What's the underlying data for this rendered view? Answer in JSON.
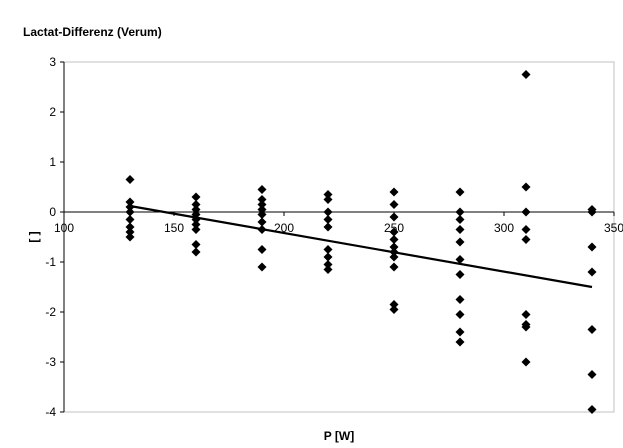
{
  "chart_data": {
    "type": "scatter",
    "title": "Lactat-Differenz (Verum)",
    "xlabel": "P [W]",
    "ylabel": "[ ]",
    "xlim": [
      100,
      350
    ],
    "ylim": [
      -4,
      3
    ],
    "xticks": [
      "100",
      "150",
      "200",
      "250",
      "300",
      "350"
    ],
    "yticks": [
      "3",
      "2",
      "1",
      "0",
      "-1",
      "-2",
      "-3",
      "-4"
    ],
    "marker_color": "#000000",
    "grid": false,
    "legend": "none",
    "series": [
      {
        "points": [
          [
            130,
            0.65
          ],
          [
            130,
            0.2
          ],
          [
            130,
            0.1
          ],
          [
            130,
            0.0
          ],
          [
            130,
            -0.15
          ],
          [
            130,
            -0.3
          ],
          [
            130,
            -0.4
          ],
          [
            130,
            -0.5
          ],
          [
            160,
            0.3
          ],
          [
            160,
            0.15
          ],
          [
            160,
            0.05
          ],
          [
            160,
            -0.05
          ],
          [
            160,
            -0.15
          ],
          [
            160,
            -0.25
          ],
          [
            160,
            -0.35
          ],
          [
            160,
            -0.65
          ],
          [
            160,
            -0.8
          ],
          [
            190,
            0.45
          ],
          [
            190,
            0.25
          ],
          [
            190,
            0.15
          ],
          [
            190,
            0.05
          ],
          [
            190,
            -0.05
          ],
          [
            190,
            -0.2
          ],
          [
            190,
            -0.35
          ],
          [
            190,
            -0.75
          ],
          [
            190,
            -1.1
          ],
          [
            220,
            0.35
          ],
          [
            220,
            0.25
          ],
          [
            220,
            0.0
          ],
          [
            220,
            -0.15
          ],
          [
            220,
            -0.3
          ],
          [
            220,
            -0.75
          ],
          [
            220,
            -0.9
          ],
          [
            220,
            -1.05
          ],
          [
            220,
            -1.15
          ],
          [
            250,
            0.4
          ],
          [
            250,
            0.15
          ],
          [
            250,
            -0.1
          ],
          [
            250,
            -0.4
          ],
          [
            250,
            -0.55
          ],
          [
            250,
            -0.7
          ],
          [
            250,
            -0.8
          ],
          [
            250,
            -0.9
          ],
          [
            250,
            -1.1
          ],
          [
            250,
            -1.85
          ],
          [
            250,
            -1.95
          ],
          [
            280,
            0.4
          ],
          [
            280,
            0.0
          ],
          [
            280,
            -0.15
          ],
          [
            280,
            -0.35
          ],
          [
            280,
            -0.6
          ],
          [
            280,
            -0.95
          ],
          [
            280,
            -1.25
          ],
          [
            280,
            -1.75
          ],
          [
            280,
            -2.05
          ],
          [
            280,
            -2.4
          ],
          [
            280,
            -2.6
          ],
          [
            310,
            2.75
          ],
          [
            310,
            0.5
          ],
          [
            310,
            0.0
          ],
          [
            310,
            -0.35
          ],
          [
            310,
            -0.55
          ],
          [
            310,
            -2.05
          ],
          [
            310,
            -2.25
          ],
          [
            310,
            -2.3
          ],
          [
            310,
            -3.0
          ],
          [
            340,
            0.05
          ],
          [
            340,
            0.0
          ],
          [
            340,
            -0.7
          ],
          [
            340,
            -1.2
          ],
          [
            340,
            -2.35
          ],
          [
            340,
            -3.25
          ],
          [
            340,
            -3.95
          ]
        ]
      }
    ],
    "trendline": {
      "x": [
        130,
        340
      ],
      "y": [
        0.12,
        -1.5
      ]
    }
  }
}
